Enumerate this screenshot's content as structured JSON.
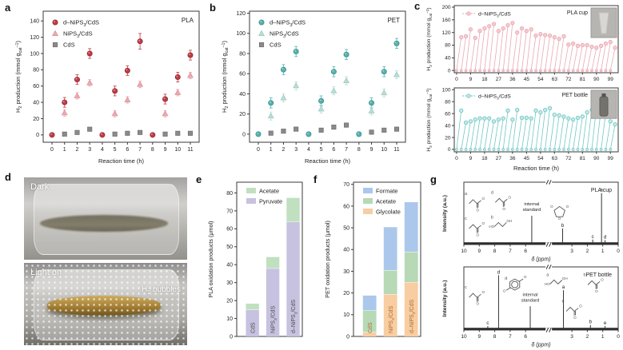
{
  "panel_letters": {
    "a": "a",
    "b": "b",
    "c": "c",
    "d": "d",
    "e": "e",
    "f": "f",
    "g": "g"
  },
  "panel_d": {
    "top_label": "Dark",
    "bottom_label": "Light on",
    "bubbles_label": "H_2_ bubbles"
  },
  "chart_data": [
    {
      "id": "panel-a",
      "type": "scatter",
      "title_tag": "PLA",
      "xlabel": "Reaction time (h)",
      "ylabel": "H_2_ production (mmol g_cat_^–1^)",
      "xticks": [
        0,
        1,
        2,
        3,
        4,
        5,
        6,
        7,
        8,
        9,
        10,
        11
      ],
      "yticks": [
        0,
        20,
        40,
        60,
        80,
        100,
        120,
        140
      ],
      "xlim": [
        -0.7,
        11.7
      ],
      "ylim": [
        -9,
        152
      ],
      "series": [
        {
          "name": "d–NiPS_3_/CdS",
          "marker": "circle",
          "color": "#c23b44",
          "edge": "#8e2a33",
          "err": 6,
          "values": [
            0,
            40,
            68,
            100,
            0,
            54,
            79,
            115,
            0,
            44,
            71,
            98
          ]
        },
        {
          "name": "NiPS_3_/CdS",
          "marker": "triangle",
          "color": "#e9aab0",
          "edge": "#dd9299",
          "err": 4,
          "values": [
            null,
            27,
            48,
            64,
            null,
            26,
            43,
            62,
            null,
            26,
            52,
            73
          ]
        },
        {
          "name": "CdS",
          "marker": "square",
          "color": "#8a8a8a",
          "edge": "#6e6e6e",
          "err": 0,
          "values": [
            null,
            1,
            3,
            7,
            null,
            1,
            2,
            3,
            null,
            1,
            2,
            2
          ]
        }
      ]
    },
    {
      "id": "panel-b",
      "type": "scatter",
      "title_tag": "PET",
      "xlabel": "Reaction time (h)",
      "ylabel": "H_2_ production (mmol g_cat_^–1^)",
      "xticks": [
        0,
        1,
        2,
        3,
        4,
        5,
        6,
        7,
        8,
        9,
        10,
        11
      ],
      "yticks": [
        0,
        20,
        40,
        60,
        80,
        100,
        120
      ],
      "xlim": [
        -0.7,
        11.7
      ],
      "ylim": [
        -8,
        122
      ],
      "series": [
        {
          "name": "d–NiPS_3_/CdS",
          "marker": "circle",
          "color": "#55b2ae",
          "edge": "#3c8f8b",
          "err": 5,
          "values": [
            0,
            31,
            64,
            82,
            0,
            33,
            62,
            79,
            0,
            31,
            62,
            90
          ]
        },
        {
          "name": "NiPS_3_/CdS",
          "marker": "triangle",
          "color": "#b9ddd6",
          "edge": "#9fc9c1",
          "err": 4,
          "values": [
            null,
            18,
            36,
            48,
            null,
            25,
            43,
            53,
            null,
            23,
            41,
            59
          ]
        },
        {
          "name": "CdS",
          "marker": "square",
          "color": "#8a8a8a",
          "edge": "#6e6e6e",
          "err": 0,
          "values": [
            null,
            1,
            3,
            5,
            null,
            4,
            7,
            9,
            null,
            2,
            4,
            5
          ]
        }
      ]
    },
    {
      "id": "panel-c-top",
      "type": "stem",
      "tag": "PLA cup",
      "inset": "cup",
      "legend": "d–NiPS_3_/CdS",
      "color": "#e9a9b2",
      "fill": "#f6cdd2",
      "ylabel": "H_2_ production (mmol g_cat_^–1^)",
      "xlabel": "",
      "xticks": [
        0,
        9,
        18,
        27,
        36,
        45,
        54,
        63,
        72,
        81,
        90,
        99
      ],
      "yticks": [
        0,
        40,
        80,
        120,
        160,
        200
      ],
      "xlim": [
        -1.5,
        104
      ],
      "ylim": [
        -7,
        205
      ],
      "cycle": 3,
      "values": [
        105,
        108,
        130,
        103,
        125,
        133,
        140,
        147,
        125,
        133,
        143,
        150,
        120,
        133,
        125,
        130,
        110,
        115,
        112,
        110,
        105,
        100,
        108,
        82,
        85,
        78,
        80,
        80,
        75,
        72,
        78,
        85,
        90,
        72
      ]
    },
    {
      "id": "panel-c-bottom",
      "type": "stem",
      "tag": "PET bottle",
      "inset": "bottle",
      "legend": "d–NiPS_3_/CdS",
      "color": "#6ec8c4",
      "fill": "#c8eae8",
      "ylabel": "H_2_ production (mmol g_cat_^–1^)",
      "xlabel": "Reaction time (h)",
      "xticks": [
        0,
        9,
        18,
        27,
        36,
        45,
        54,
        63,
        72,
        81,
        90,
        99
      ],
      "yticks": [
        0,
        20,
        40,
        60,
        80,
        100
      ],
      "xlim": [
        -1.5,
        104
      ],
      "ylim": [
        -4,
        103
      ],
      "cycle": 3,
      "values": [
        65,
        45,
        47,
        50,
        52,
        52,
        52,
        47,
        50,
        52,
        65,
        50,
        66,
        53,
        53,
        52,
        65,
        62,
        66,
        69,
        58,
        57,
        55,
        52,
        50,
        53,
        55,
        62,
        66,
        70,
        69,
        62,
        47,
        42
      ]
    },
    {
      "id": "panel-e",
      "type": "stacked-bar",
      "ylabel": "PLA oxidation products (μmol)",
      "ylim": [
        0,
        86
      ],
      "yticks": [
        0,
        10,
        20,
        30,
        40,
        50,
        60,
        70,
        80
      ],
      "categories": [
        "CdS",
        "NiPS_3_/CdS",
        "d–NiPS_3_/CdS"
      ],
      "xlabel_color": "#4d4d4d",
      "series": [
        {
          "name": "Pyruvate",
          "color": "#c6c2df",
          "values": [
            15,
            38,
            64
          ]
        },
        {
          "name": "Acetate",
          "color": "#c0e0c0",
          "values": [
            3.5,
            6.5,
            13.5
          ]
        }
      ],
      "legend_order": [
        "Acetate",
        "Pyruvate"
      ]
    },
    {
      "id": "panel-f",
      "type": "stacked-bar",
      "ylabel": "PET oxidation products (μmol)",
      "ylim": [
        0,
        71
      ],
      "yticks": [
        0,
        10,
        20,
        30,
        40,
        50,
        60,
        70
      ],
      "categories": [
        "CdS",
        "NiPS_3_/CdS",
        "d–NiPS_3_/CdS"
      ],
      "xlabel_color": "#b06a30",
      "series": [
        {
          "name": "Glycolate",
          "color": "#f7cda1",
          "values": [
            2,
            19.5,
            25
          ]
        },
        {
          "name": "Acetate",
          "color": "#b7d9b6",
          "values": [
            10,
            11,
            14
          ]
        },
        {
          "name": "Formate",
          "color": "#abc8ec",
          "values": [
            7,
            20,
            23
          ]
        }
      ],
      "legend_order": [
        "Formate",
        "Acetate",
        "Glycolate"
      ]
    },
    {
      "id": "panel-g-top",
      "type": "nmr",
      "tag": "PLA cup",
      "xlabel": "δ (ppm)",
      "ylabel": "Intensity (a.u.)",
      "xlim": [
        10,
        0
      ],
      "xticks": [
        10,
        9,
        8,
        7,
        6,
        3,
        2,
        1,
        0
      ],
      "break_x": 4.5,
      "internal_standard": {
        "x": 5.6,
        "h": 0.52,
        "label": "internal standard"
      },
      "peaks": [
        {
          "x": 3.6,
          "h": 0.28,
          "label": "b"
        },
        {
          "x": 1.65,
          "h": 0.07,
          "label": "c"
        },
        {
          "x": 1.08,
          "h": 0.95,
          "label": "a"
        },
        {
          "x": 0.85,
          "h": 0.06,
          "label": "d"
        }
      ],
      "molecules": [
        {
          "x": 0.07,
          "y": 0.28,
          "kind": "carboxyl",
          "label": "a"
        },
        {
          "x": 0.24,
          "y": 0.26,
          "kind": "carboxyl",
          "label": "d"
        },
        {
          "x": 0.07,
          "y": 0.68,
          "kind": "carboxyl",
          "label": "c"
        },
        {
          "x": 0.24,
          "y": 0.66,
          "kind": "diol",
          "label": "b"
        },
        {
          "x": 0.62,
          "y": 0.48,
          "kind": "ring",
          "label": ""
        }
      ]
    },
    {
      "id": "panel-g-bottom",
      "type": "nmr",
      "tag": "PET bottle",
      "xlabel": "δ (ppm)",
      "ylabel": "Intensity (a.u.)",
      "xlim": [
        10,
        0
      ],
      "xticks": [
        10,
        9,
        8,
        7,
        6,
        3,
        2,
        1,
        0
      ],
      "break_x": 4.5,
      "internal_standard": {
        "x": 5.7,
        "h": 0.42,
        "label": "internal standard"
      },
      "peaks": [
        {
          "x": 8.45,
          "h": 0.05,
          "label": "c"
        },
        {
          "x": 7.75,
          "h": 1.0,
          "label": "d"
        },
        {
          "x": 3.55,
          "h": 0.72,
          "label": "a"
        },
        {
          "x": 1.8,
          "h": 0.07,
          "label": "b"
        },
        {
          "x": 0.85,
          "h": 0.05,
          "label": "e"
        }
      ],
      "molecules": [
        {
          "x": 0.07,
          "y": 0.42,
          "kind": "carboxyl",
          "label": "c"
        },
        {
          "x": 0.33,
          "y": 0.28,
          "kind": "benzene",
          "label": "d"
        },
        {
          "x": 0.6,
          "y": 0.22,
          "kind": "diol",
          "label": "a"
        },
        {
          "x": 0.84,
          "y": 0.22,
          "kind": "carboxyl",
          "label": "b"
        },
        {
          "x": 0.7,
          "y": 0.64,
          "kind": "carboxyl",
          "label": "e"
        }
      ]
    }
  ]
}
